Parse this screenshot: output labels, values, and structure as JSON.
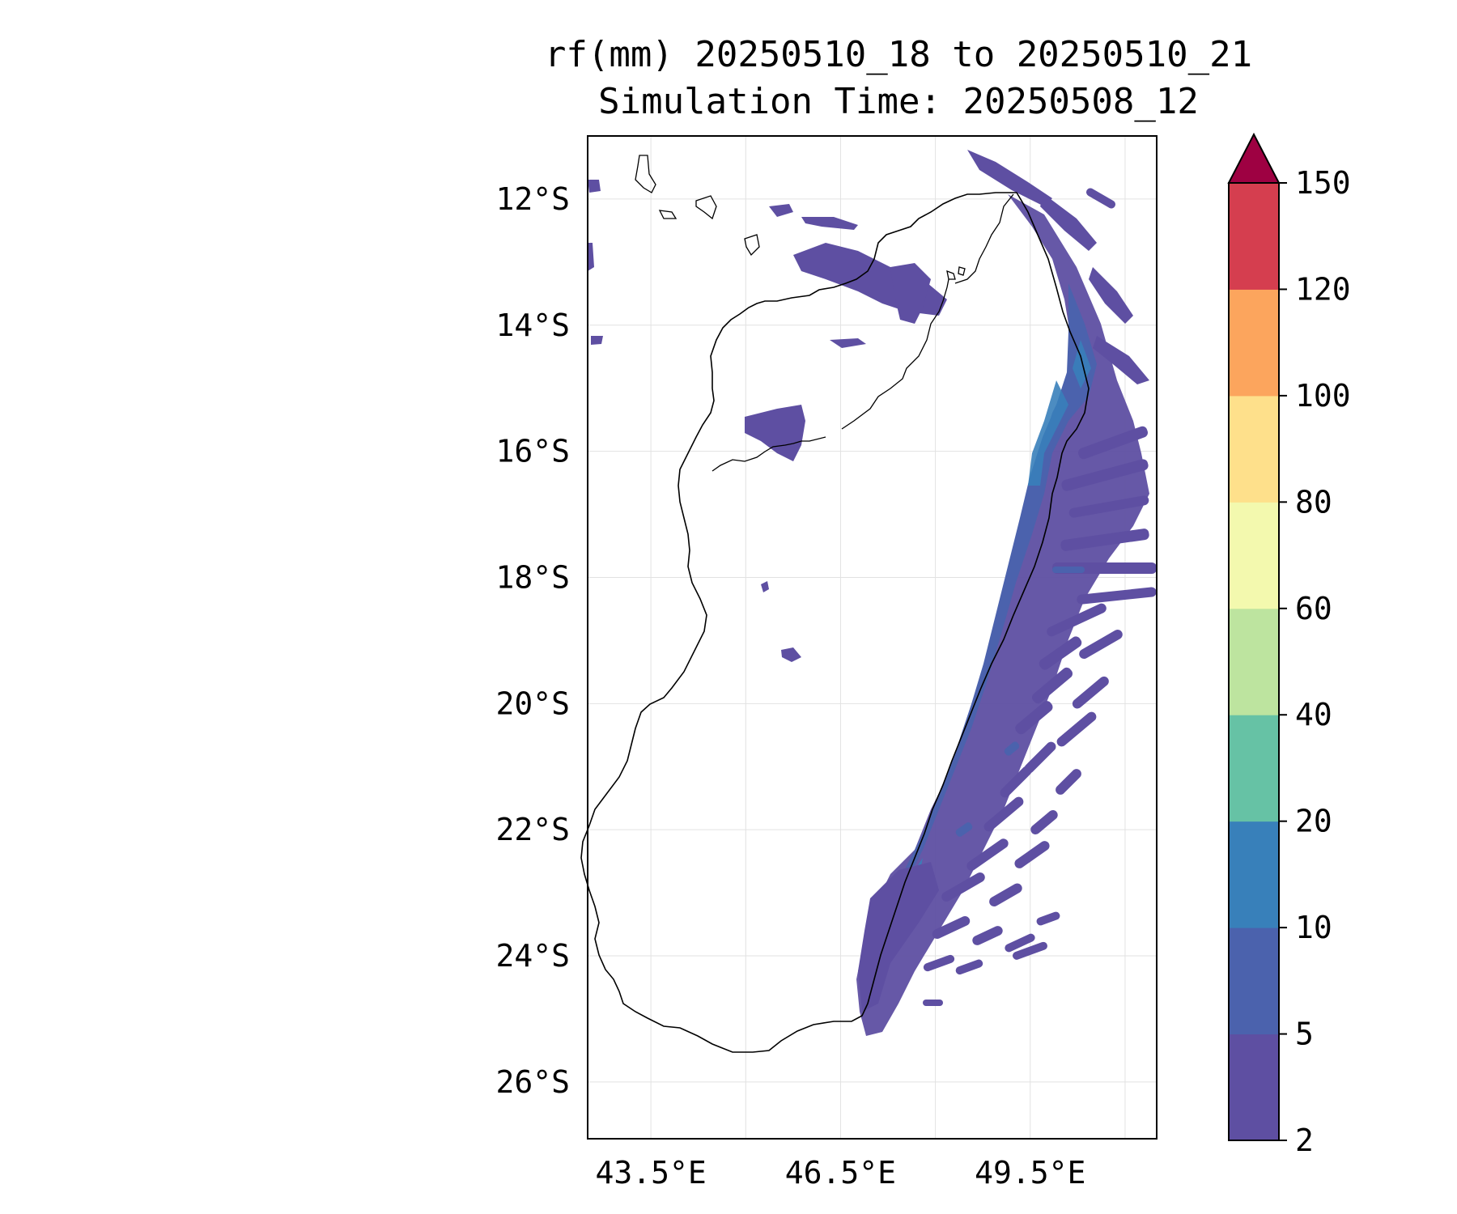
{
  "title": {
    "line1": "rf(mm) 20250510_18 to 20250510_21",
    "line2": "Simulation Time: 20250508_12"
  },
  "map": {
    "lon_range": [
      42.5,
      51.5
    ],
    "lat_range": [
      -26.9,
      -11.0
    ],
    "lon_ticks": [
      {
        "value": 43.5,
        "label": "43.5°E"
      },
      {
        "value": 46.5,
        "label": "46.5°E"
      },
      {
        "value": 49.5,
        "label": "49.5°E"
      }
    ],
    "lat_ticks": [
      {
        "value": -12,
        "label": "12°S"
      },
      {
        "value": -14,
        "label": "14°S"
      },
      {
        "value": -16,
        "label": "16°S"
      },
      {
        "value": -18,
        "label": "18°S"
      },
      {
        "value": -20,
        "label": "20°S"
      },
      {
        "value": -22,
        "label": "22°S"
      },
      {
        "value": -24,
        "label": "24°S"
      },
      {
        "value": -26,
        "label": "26°S"
      }
    ],
    "gridlines_lon": [
      43.5,
      45.0,
      46.5,
      48.0,
      49.5,
      51.0
    ],
    "grid": true,
    "land_outline": "black coastline (Madagascar)"
  },
  "colorbar": {
    "levels": [
      2,
      5,
      10,
      20,
      40,
      60,
      80,
      100,
      120,
      150
    ],
    "colors": [
      "#5e4fa2",
      "#4b62ad",
      "#3880ba",
      "#66c2a5",
      "#bde49f",
      "#f3f9ae",
      "#fee08b",
      "#fca55d",
      "#d53e4f"
    ],
    "extend_color": "#9e0142",
    "extend": "max",
    "orientation": "vertical"
  },
  "rainfall": {
    "dominant_class_color": "#5e4fa2",
    "mid_class_color": "#4b62ad",
    "high_class_color": "#3880ba"
  }
}
